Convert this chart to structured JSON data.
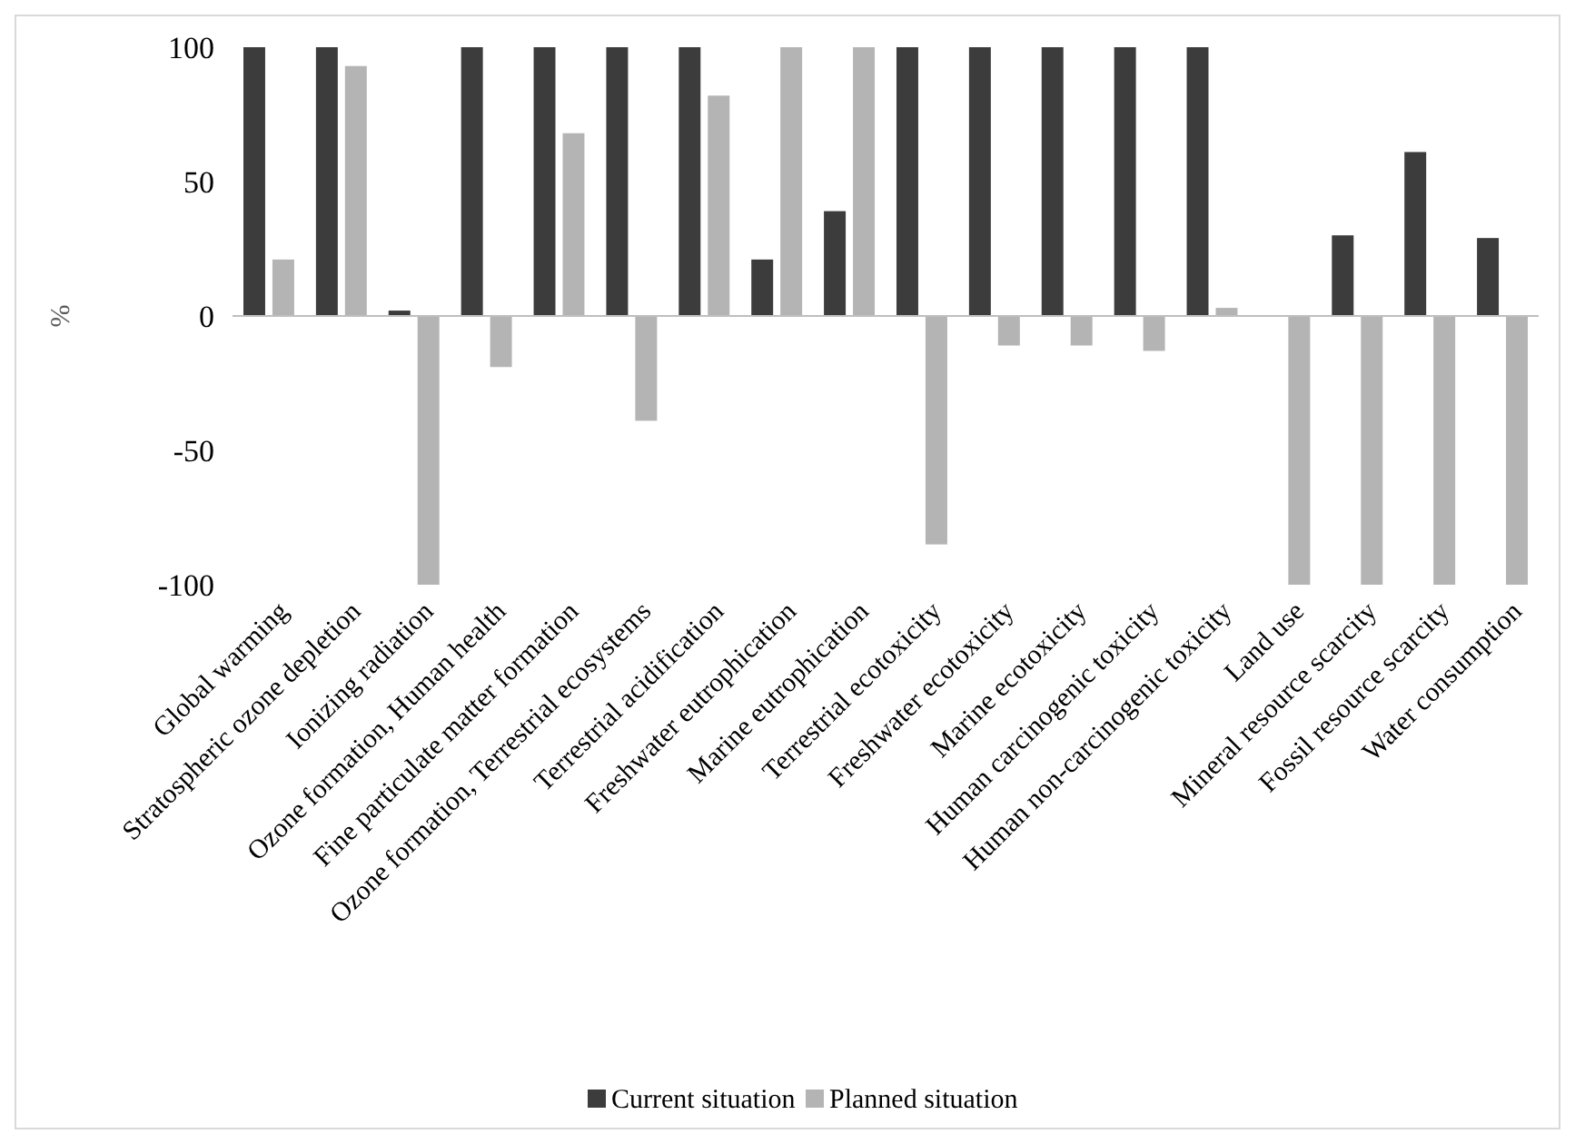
{
  "chart_data": {
    "type": "bar",
    "ylabel": "%",
    "categories": [
      "Global warming",
      "Stratospheric ozone depletion",
      "Ionizing radiation",
      "Ozone formation, Human health",
      "Fine particulate matter formation",
      "Ozone formation, Terrestrial ecosystems",
      "Terrestrial acidification",
      "Freshwater eutrophication",
      "Marine eutrophication",
      "Terrestrial ecotoxicity",
      "Freshwater ecotoxicity",
      "Marine ecotoxicity",
      "Human carcinogenic toxicity",
      "Human non-carcinogenic toxicity",
      "Land use",
      "Mineral resource scarcity",
      "Fossil resource scarcity",
      "Water consumption"
    ],
    "series": [
      {
        "name": "Current situation",
        "color": "#3c3c3c",
        "values": [
          100,
          100,
          2,
          100,
          100,
          100,
          100,
          21,
          39,
          100,
          100,
          100,
          100,
          100,
          0,
          30,
          61,
          29
        ]
      },
      {
        "name": "Planned situation",
        "color": "#b4b4b4",
        "values": [
          21,
          93,
          -100,
          -19,
          68,
          -39,
          82,
          100,
          100,
          -85,
          -11,
          -11,
          -13,
          3,
          -100,
          -100,
          -100,
          -100
        ]
      }
    ],
    "ylim": [
      -100,
      100
    ],
    "yticks": [
      -100,
      -50,
      0,
      50,
      100
    ],
    "legend": "bottom"
  }
}
